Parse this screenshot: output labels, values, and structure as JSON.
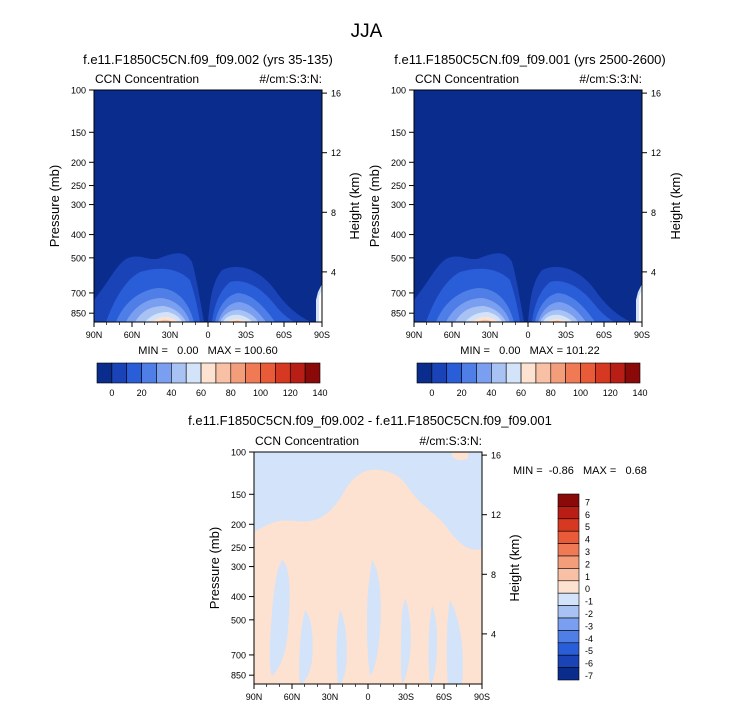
{
  "chart_data": {
    "type": "contour",
    "super_title": "JJA",
    "panels": [
      {
        "id": "top-left",
        "title": "f.e11.F1850C5CN.f09_f09.002 (yrs 35-135)",
        "left_label": "CCN Concentration",
        "right_label": "#/cm:S:3:N:",
        "ylabel": "Pressure (mb)",
        "ylabel_right": "Height (km)",
        "yticks": [
          "100",
          "150",
          "200",
          "250",
          "300",
          "400",
          "500",
          "700",
          "850"
        ],
        "yticks_right": [
          "16",
          "12",
          "8",
          "4"
        ],
        "xticks": [
          "90N",
          "60N",
          "30N",
          "0",
          "30S",
          "60S",
          "90S"
        ],
        "stats": "MIN =   0.00   MAX = 100.60",
        "min": 0.0,
        "max": 100.6
      },
      {
        "id": "top-right",
        "title": "f.e11.F1850C5CN.f09_f09.001 (yrs 2500-2600)",
        "left_label": "CCN Concentration",
        "right_label": "#/cm:S:3:N:",
        "ylabel": "Pressure (mb)",
        "ylabel_right": "Height (km)",
        "yticks": [
          "100",
          "150",
          "200",
          "250",
          "300",
          "400",
          "500",
          "700",
          "850"
        ],
        "yticks_right": [
          "16",
          "12",
          "8",
          "4"
        ],
        "xticks": [
          "90N",
          "60N",
          "30N",
          "0",
          "30S",
          "60S",
          "90S"
        ],
        "stats": "MIN =   0.00   MAX = 101.22",
        "min": 0.0,
        "max": 101.22
      },
      {
        "id": "bottom",
        "title": "f.e11.F1850C5CN.f09_f09.002 - f.e11.F1850C5CN.f09_f09.001",
        "left_label": "CCN Concentration",
        "right_label": "#/cm:S:3:N:",
        "ylabel": "Pressure (mb)",
        "ylabel_right": "Height (km)",
        "yticks": [
          "100",
          "150",
          "200",
          "250",
          "300",
          "400",
          "500",
          "700",
          "850"
        ],
        "yticks_right": [
          "16",
          "12",
          "8",
          "4"
        ],
        "xticks": [
          "90N",
          "60N",
          "30N",
          "0",
          "30S",
          "60S",
          "90S"
        ],
        "stats": "MIN =  -0.86   MAX =   0.68",
        "min": -0.86,
        "max": 0.68
      }
    ],
    "shared_colorbar": {
      "orientation": "horizontal",
      "colors": [
        "#0a2c8c",
        "#1a43b8",
        "#2a5ed8",
        "#4f7ee6",
        "#7a9ff0",
        "#a9c2f4",
        "#d3e3f9",
        "#fde2d1",
        "#f8c0a4",
        "#f49d7a",
        "#f07a56",
        "#e85a38",
        "#d63822",
        "#b81e16",
        "#8a0a0a"
      ],
      "tick_labels": [
        "0",
        "20",
        "40",
        "60",
        "80",
        "100",
        "120",
        "140"
      ]
    },
    "diff_colorbar": {
      "orientation": "vertical",
      "colors": [
        "#8a0a0a",
        "#b81e16",
        "#d63822",
        "#e85a38",
        "#f07a56",
        "#f49d7a",
        "#f8c0a4",
        "#fde2d1",
        "#d3e3f9",
        "#a9c2f4",
        "#7a9ff0",
        "#4f7ee6",
        "#2a5ed8",
        "#1a43b8",
        "#0a2c8c"
      ],
      "tick_labels": [
        "7",
        "6",
        "5",
        "4",
        "3",
        "2",
        "1",
        "0",
        "-1",
        "-2",
        "-3",
        "-4",
        "-5",
        "-6",
        "-7"
      ]
    }
  }
}
